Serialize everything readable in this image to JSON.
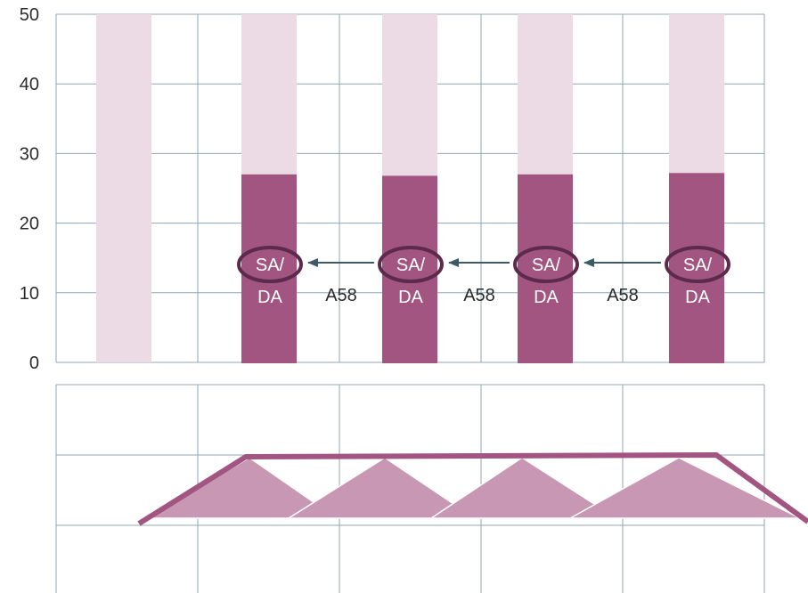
{
  "chart_data": {
    "type": "bar",
    "ylim": [
      0,
      50
    ],
    "yticks": [
      "0",
      "10",
      "20",
      "30",
      "40",
      "50"
    ],
    "categories": [
      "",
      "",
      "",
      "",
      ""
    ],
    "series": [
      {
        "values": [
          0,
          27,
          26.8,
          27,
          27.2
        ]
      }
    ],
    "background_values": [
      50,
      50,
      50,
      50,
      50
    ],
    "bar_labels": [
      "",
      "SA/\nDA",
      "SA/\nDA",
      "SA/\nDA",
      "SA/\nDA"
    ],
    "connectors": [
      "A58",
      "A58",
      "A58"
    ],
    "colors": {
      "background_bar": "#ecdbe5",
      "value_bar": "#a15580",
      "ellipse": "#5c2a4a",
      "arrow": "#3f5a66",
      "grid": "#8fa7b3",
      "lower_fill": "#c797b3",
      "lower_line": "#a15580"
    },
    "grid": true
  }
}
